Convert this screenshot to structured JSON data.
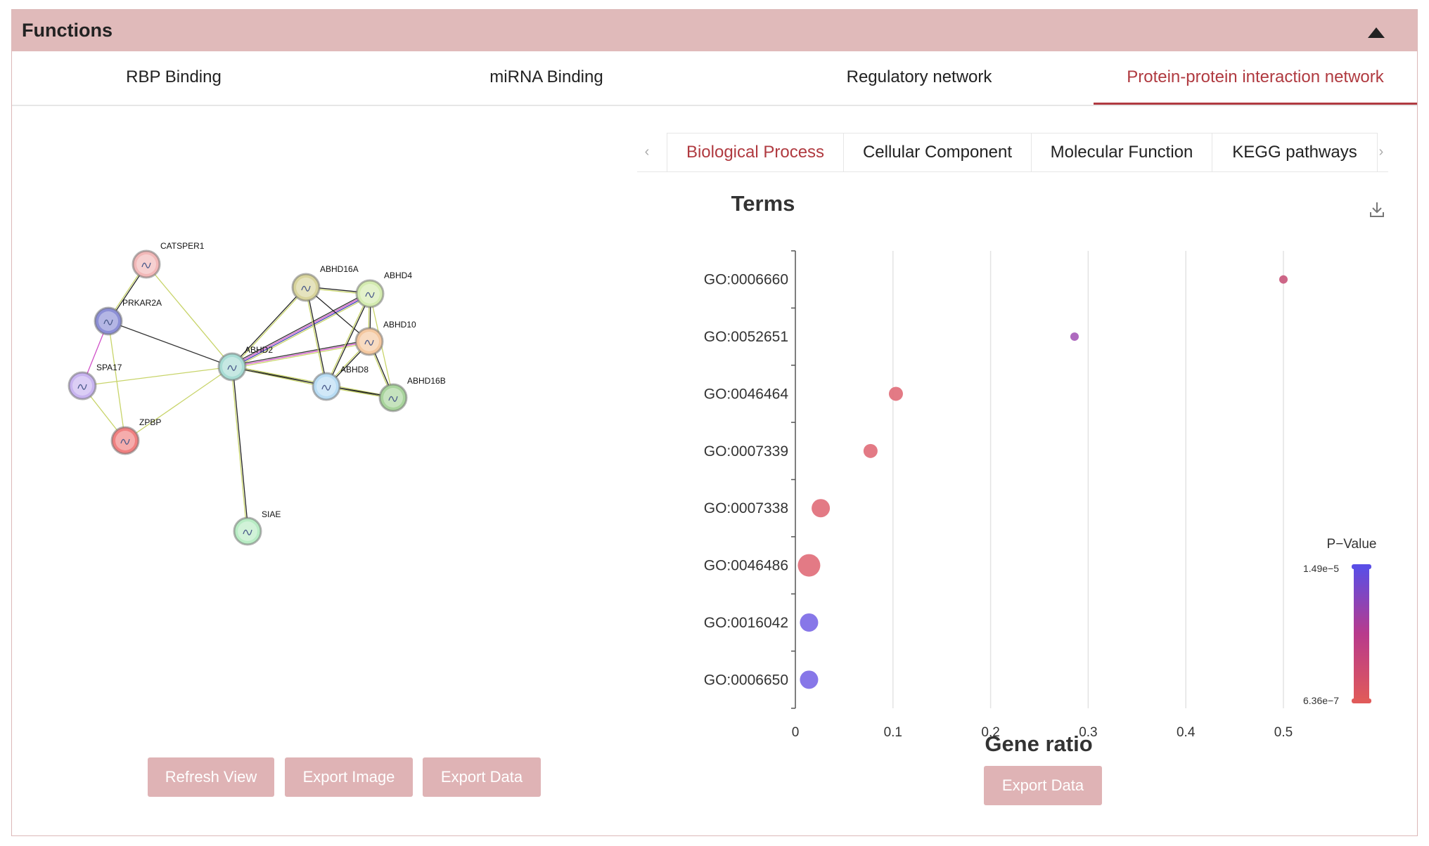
{
  "header": {
    "title": "Functions"
  },
  "main_tabs": [
    {
      "label": "RBP Binding",
      "active": false
    },
    {
      "label": "miRNA Binding",
      "active": false
    },
    {
      "label": "Regulatory network",
      "active": false
    },
    {
      "label": "Protein-protein interaction network",
      "active": true
    }
  ],
  "network": {
    "nodes": [
      {
        "id": "CATSPER1",
        "label": "CATSPER1",
        "color": "#f2b8b8"
      },
      {
        "id": "PRKAR2A",
        "label": "PRKAR2A",
        "color": "#8c8fd6"
      },
      {
        "id": "SPA17",
        "label": "SPA17",
        "color": "#c8b4f0"
      },
      {
        "id": "ZPBP",
        "label": "ZPBP",
        "color": "#f08080"
      },
      {
        "id": "ABHD2",
        "label": "ABHD2",
        "color": "#a8dcd4"
      },
      {
        "id": "ABHD16A",
        "label": "ABHD16A",
        "color": "#d8d49c"
      },
      {
        "id": "ABHD4",
        "label": "ABHD4",
        "color": "#d4ecb0"
      },
      {
        "id": "ABHD10",
        "label": "ABHD10",
        "color": "#f4c8a0"
      },
      {
        "id": "ABHD8",
        "label": "ABHD8",
        "color": "#b8dcf4"
      },
      {
        "id": "ABHD16B",
        "label": "ABHD16B",
        "color": "#a8d49c"
      },
      {
        "id": "SIAE",
        "label": "SIAE",
        "color": "#b8ecc4"
      }
    ],
    "buttons": {
      "refresh": "Refresh View",
      "export_image": "Export Image",
      "export_data": "Export Data"
    }
  },
  "sub_tabs": [
    {
      "label": "Biological Process",
      "active": true
    },
    {
      "label": "Cellular Component",
      "active": false
    },
    {
      "label": "Molecular Function",
      "active": false
    },
    {
      "label": "KEGG pathways",
      "active": false
    }
  ],
  "chart_export_label": "Export Data",
  "chart_data": {
    "type": "scatter",
    "title": "Terms",
    "xlabel": "Gene ratio",
    "ylabel": "",
    "xlim": [
      0,
      0.5
    ],
    "xticks": [
      "0",
      "0.1",
      "0.2",
      "0.3",
      "0.4",
      "0.5"
    ],
    "categories": [
      "GO:0006660",
      "GO:0052651",
      "GO:0046464",
      "GO:0007339",
      "GO:0007338",
      "GO:0046486",
      "GO:0016042",
      "GO:0006650"
    ],
    "x": [
      0.5,
      0.286,
      0.103,
      0.077,
      0.026,
      0.014,
      0.014,
      0.014
    ],
    "sizes": [
      1,
      1,
      2,
      2,
      3,
      4,
      3,
      3
    ],
    "colors": [
      "#c8557a",
      "#a55ab8",
      "#e06c78",
      "#e06c78",
      "#e06c78",
      "#e06c78",
      "#7a68e6",
      "#7a68e6"
    ],
    "legend": {
      "title": "P−Value",
      "max_label": "1.49e−5",
      "min_label": "6.36e−7",
      "top_color": "#5a4ee6",
      "bottom_color": "#e05a5a"
    },
    "grid": true
  }
}
